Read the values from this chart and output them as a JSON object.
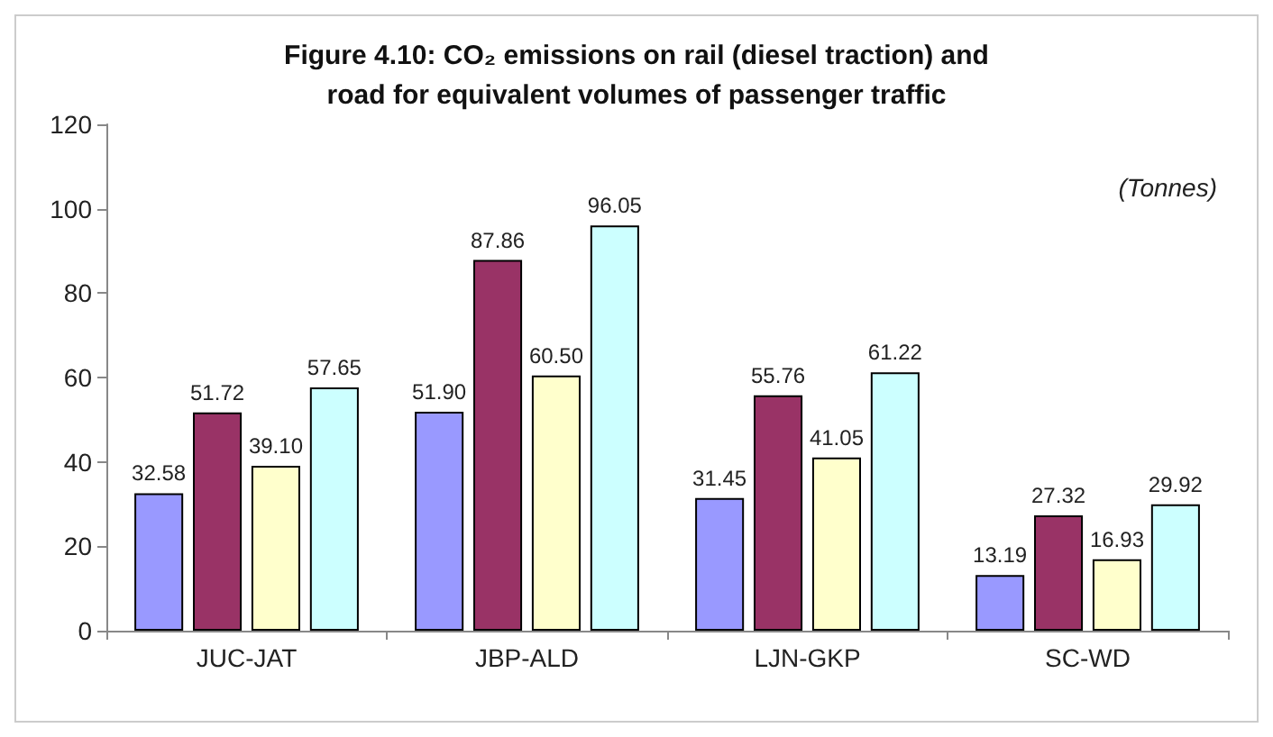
{
  "chart_data": {
    "type": "bar",
    "title": "Figure 4.10: CO₂ emissions on rail (diesel traction) and\nroad for equivalent volumes of passenger traffic",
    "annotations": [
      "(Tonnes)"
    ],
    "categories": [
      "JUC-JAT",
      "JBP-ALD",
      "LJN-GKP",
      "SC-WD"
    ],
    "series": [
      {
        "color": "#9999ff",
        "values": [
          32.58,
          51.9,
          31.45,
          13.19
        ],
        "value_labels": [
          "32.58",
          "51.90",
          "31.45",
          "13.19"
        ]
      },
      {
        "color": "#993366",
        "values": [
          51.72,
          87.86,
          55.76,
          27.32
        ],
        "value_labels": [
          "51.72",
          "87.86",
          "55.76",
          "27.32"
        ]
      },
      {
        "color": "#ffffcc",
        "values": [
          39.1,
          60.5,
          41.05,
          16.93
        ],
        "value_labels": [
          "39.10",
          "60.50",
          "41.05",
          "16.93"
        ]
      },
      {
        "color": "#ccffff",
        "values": [
          57.65,
          96.05,
          61.22,
          29.92
        ],
        "value_labels": [
          "57.65",
          "96.05",
          "61.22",
          "29.92"
        ]
      }
    ],
    "ylim": [
      0,
      120
    ],
    "yticks": [
      0,
      20,
      40,
      60,
      80,
      100,
      120
    ],
    "grid": false
  }
}
